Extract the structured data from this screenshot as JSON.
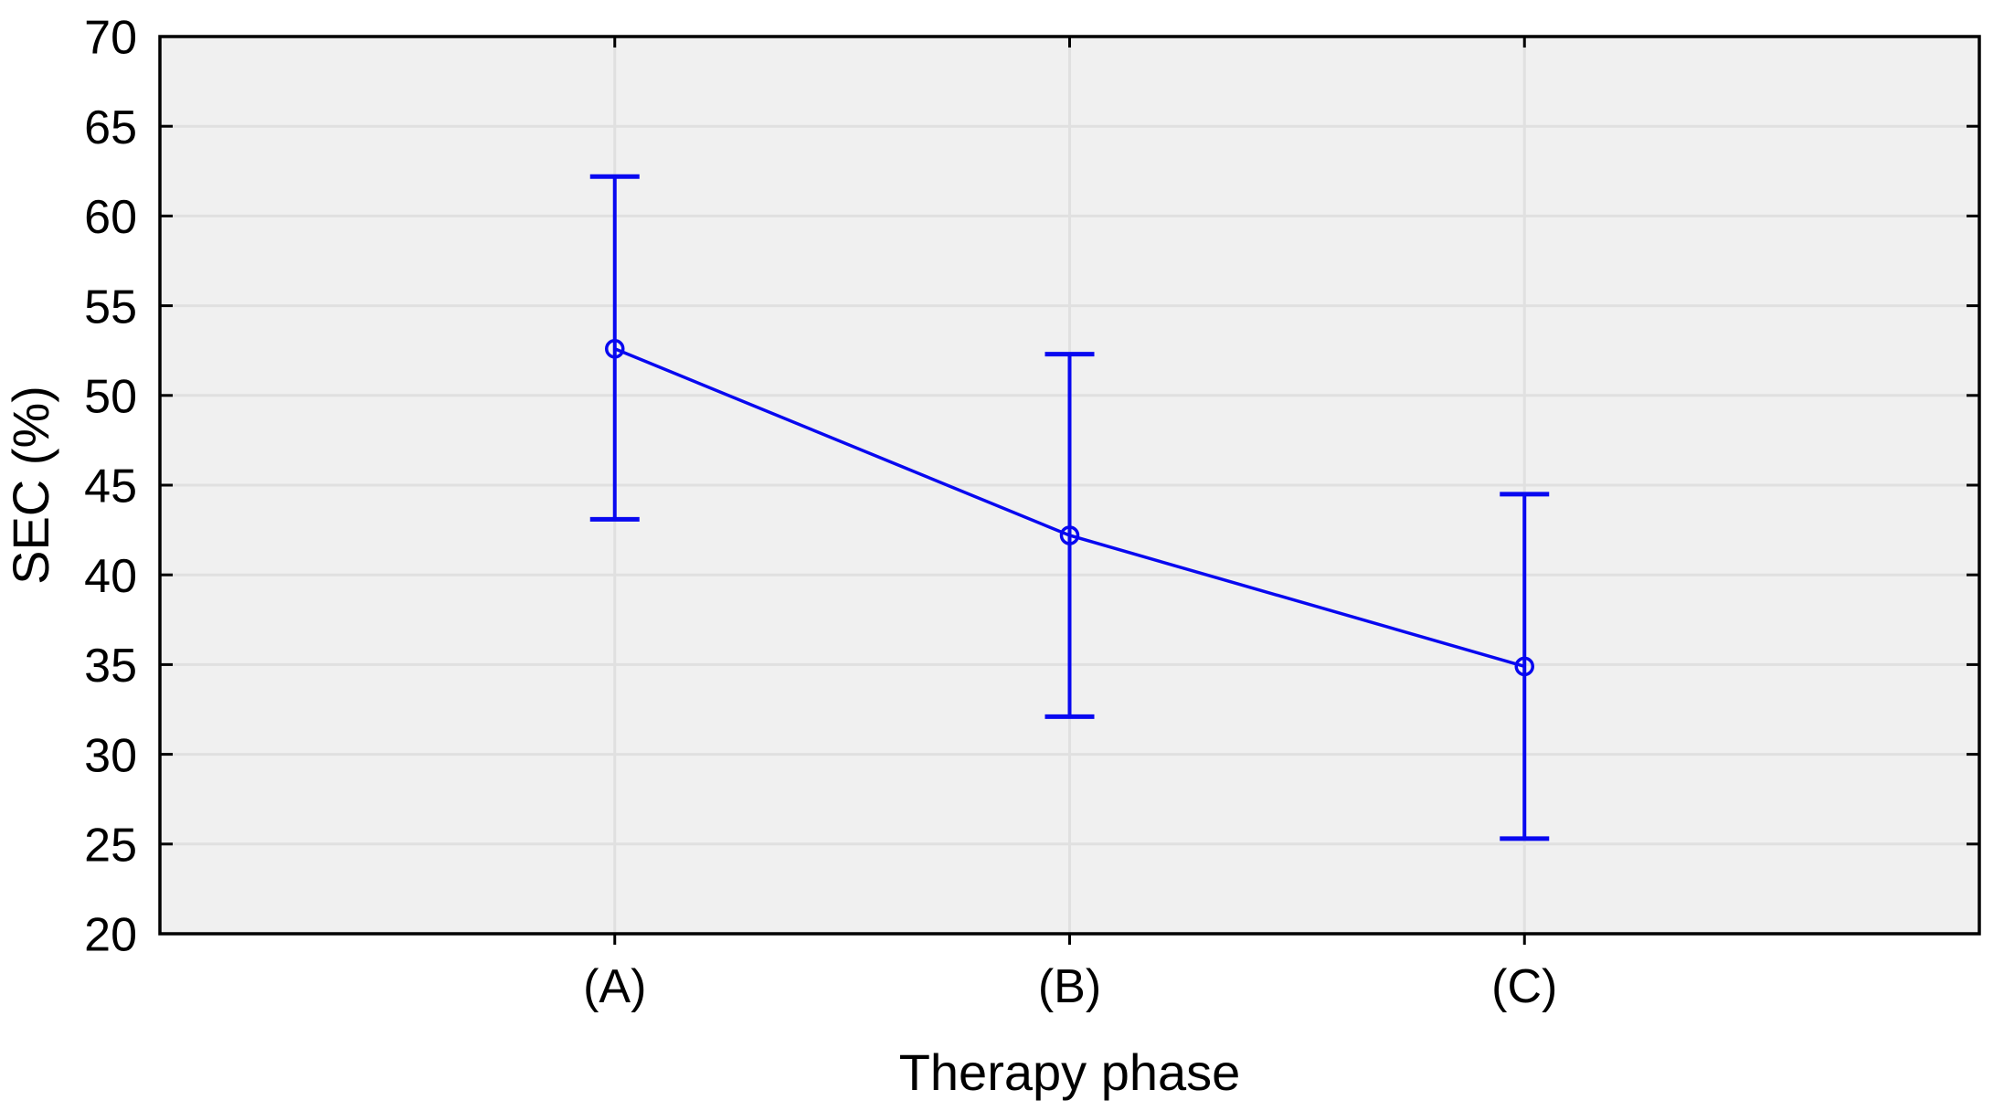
{
  "figure": {
    "colors": {
      "page_background": "#ffffff",
      "plot_background": "#f0f0f0",
      "grid": "#e0e0e0",
      "axis_frame": "#000000",
      "text": "#000000",
      "series": "#0808f0"
    }
  },
  "chart_data": {
    "type": "line",
    "title": "",
    "xlabel": "Therapy phase",
    "ylabel": "SEC (%)",
    "categories": [
      "(A)",
      "(B)",
      "(C)"
    ],
    "series": [
      {
        "values": [
          52.6,
          42.2,
          34.9
        ],
        "ci_lower": [
          43.1,
          32.1,
          25.3
        ],
        "ci_upper": [
          62.2,
          52.3,
          44.5
        ]
      }
    ],
    "ylim": [
      20,
      70
    ],
    "yticks": [
      20,
      25,
      30,
      35,
      40,
      45,
      50,
      55,
      60,
      65,
      70
    ],
    "grid": {
      "horizontal": true,
      "vertical_at_categories": true
    },
    "legend": "none",
    "marker": "open-circle",
    "error_bars": "capped-whiskers"
  }
}
